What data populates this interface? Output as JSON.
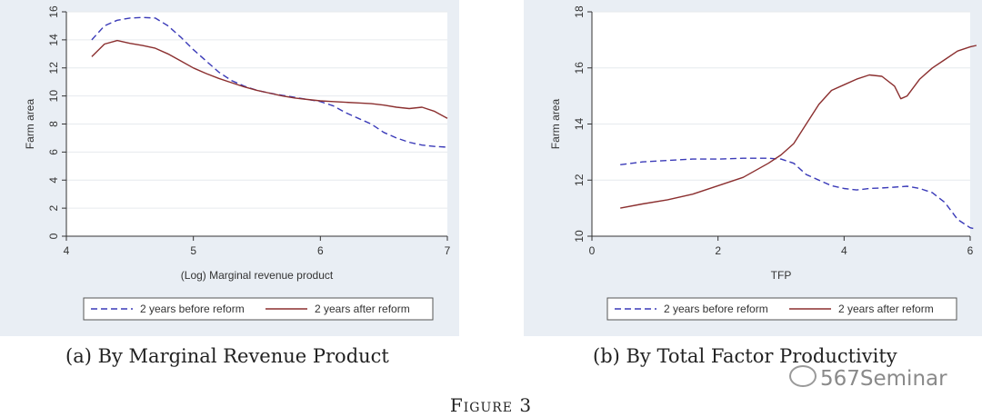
{
  "chart_data": [
    {
      "type": "line",
      "panel_caption": "(a) By Marginal Revenue Product",
      "xlabel": "(Log) Marginal revenue product",
      "ylabel": "Farm area",
      "xlim": [
        4,
        7
      ],
      "ylim": [
        0,
        16
      ],
      "xticks": [
        4,
        5,
        6,
        7
      ],
      "yticks": [
        0,
        2,
        4,
        6,
        8,
        10,
        12,
        14,
        16
      ],
      "grid": true,
      "legend_position": "bottom",
      "series": [
        {
          "name": "2 years before reform",
          "style": "dashed",
          "color": "#3a3ab8",
          "x": [
            4.2,
            4.3,
            4.4,
            4.5,
            4.6,
            4.7,
            4.8,
            4.9,
            5.0,
            5.1,
            5.2,
            5.3,
            5.4,
            5.5,
            5.6,
            5.7,
            5.8,
            5.9,
            6.0,
            6.1,
            6.2,
            6.3,
            6.4,
            6.5,
            6.6,
            6.7,
            6.8,
            6.9,
            7.0
          ],
          "y": [
            14.0,
            15.0,
            15.4,
            15.55,
            15.6,
            15.55,
            15.0,
            14.2,
            13.3,
            12.5,
            11.7,
            11.1,
            10.7,
            10.4,
            10.2,
            10.05,
            9.9,
            9.75,
            9.6,
            9.3,
            8.8,
            8.4,
            8.0,
            7.4,
            7.0,
            6.7,
            6.5,
            6.4,
            6.35
          ]
        },
        {
          "name": "2 years after reform",
          "style": "solid",
          "color": "#8b2f2f",
          "x": [
            4.2,
            4.3,
            4.4,
            4.5,
            4.6,
            4.7,
            4.8,
            4.9,
            5.0,
            5.1,
            5.2,
            5.3,
            5.4,
            5.5,
            5.6,
            5.7,
            5.8,
            5.9,
            6.0,
            6.1,
            6.2,
            6.3,
            6.4,
            6.5,
            6.6,
            6.7,
            6.8,
            6.9,
            7.0
          ],
          "y": [
            12.8,
            13.7,
            13.95,
            13.75,
            13.6,
            13.4,
            13.0,
            12.5,
            12.0,
            11.6,
            11.25,
            10.95,
            10.65,
            10.4,
            10.2,
            10.0,
            9.85,
            9.75,
            9.65,
            9.6,
            9.55,
            9.5,
            9.45,
            9.35,
            9.2,
            9.1,
            9.2,
            8.9,
            8.4
          ]
        }
      ]
    },
    {
      "type": "line",
      "panel_caption": "(b) By Total Factor Productivity",
      "xlabel": "TFP",
      "ylabel": "Farm area",
      "xlim": [
        0,
        6
      ],
      "ylim": [
        10,
        18
      ],
      "xticks": [
        0,
        2,
        4,
        6
      ],
      "yticks": [
        10,
        12,
        14,
        16,
        18
      ],
      "grid": true,
      "legend_position": "bottom",
      "series": [
        {
          "name": "2 years before reform",
          "style": "dashed",
          "color": "#3a3ab8",
          "x": [
            0.45,
            0.8,
            1.2,
            1.6,
            2.0,
            2.4,
            2.8,
            3.0,
            3.2,
            3.4,
            3.6,
            3.8,
            4.0,
            4.2,
            4.4,
            4.6,
            4.8,
            5.0,
            5.2,
            5.4,
            5.6,
            5.8,
            6.0,
            6.1
          ],
          "y": [
            12.55,
            12.65,
            12.7,
            12.75,
            12.75,
            12.78,
            12.78,
            12.75,
            12.6,
            12.2,
            12.0,
            11.8,
            11.7,
            11.65,
            11.7,
            11.72,
            11.75,
            11.78,
            11.7,
            11.55,
            11.2,
            10.6,
            10.3,
            10.25
          ]
        },
        {
          "name": "2 years after reform",
          "style": "solid",
          "color": "#8b2f2f",
          "x": [
            0.45,
            0.8,
            1.2,
            1.6,
            2.0,
            2.4,
            2.8,
            3.0,
            3.2,
            3.4,
            3.6,
            3.8,
            4.0,
            4.2,
            4.4,
            4.6,
            4.8,
            4.9,
            5.0,
            5.2,
            5.4,
            5.6,
            5.8,
            6.0,
            6.1
          ],
          "y": [
            11.0,
            11.15,
            11.3,
            11.5,
            11.8,
            12.1,
            12.6,
            12.9,
            13.3,
            14.0,
            14.7,
            15.2,
            15.4,
            15.6,
            15.75,
            15.7,
            15.35,
            14.9,
            15.0,
            15.6,
            16.0,
            16.3,
            16.6,
            16.75,
            16.8
          ]
        }
      ]
    }
  ],
  "captions": {
    "a": "(a) By Marginal Revenue Product",
    "b": "(b) By Total Factor Productivity"
  },
  "figure_title": "Figure 3",
  "watermark": "567Seminar"
}
